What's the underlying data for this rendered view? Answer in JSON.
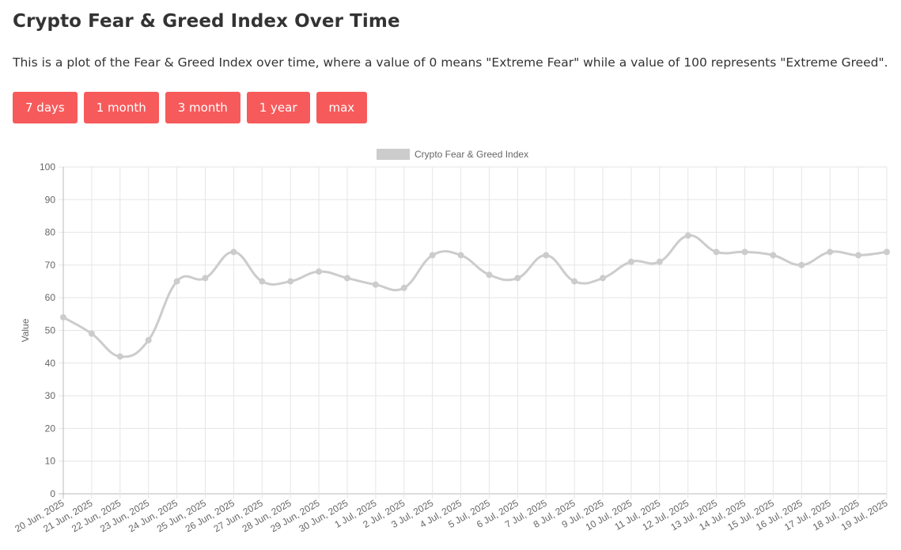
{
  "page": {
    "title": "Crypto Fear & Greed Index Over Time",
    "description": "This is a plot of the Fear & Greed Index over time, where a value of 0 means \"Extreme Fear\" while a value of 100 represents \"Extreme Greed\"."
  },
  "range_buttons": [
    "7 days",
    "1 month",
    "3 month",
    "1 year",
    "max"
  ],
  "colors": {
    "button_bg": "#f75a5a",
    "button_text": "#ffffff",
    "line": "#cccccc",
    "grid": "#e5e5e5",
    "text": "#333333"
  },
  "chart_data": {
    "type": "line",
    "title": "",
    "xlabel": "",
    "ylabel": "Value",
    "ylim": [
      0,
      100
    ],
    "yticks": [
      0,
      10,
      20,
      30,
      40,
      50,
      60,
      70,
      80,
      90,
      100
    ],
    "grid": true,
    "legend_position": "top-center",
    "categories": [
      "20 Jun, 2025",
      "21 Jun, 2025",
      "22 Jun, 2025",
      "23 Jun, 2025",
      "24 Jun, 2025",
      "25 Jun, 2025",
      "26 Jun, 2025",
      "27 Jun, 2025",
      "28 Jun, 2025",
      "29 Jun, 2025",
      "30 Jun, 2025",
      "1 Jul, 2025",
      "2 Jul, 2025",
      "3 Jul, 2025",
      "4 Jul, 2025",
      "5 Jul, 2025",
      "6 Jul, 2025",
      "7 Jul, 2025",
      "8 Jul, 2025",
      "9 Jul, 2025",
      "10 Jul, 2025",
      "11 Jul, 2025",
      "12 Jul, 2025",
      "13 Jul, 2025",
      "14 Jul, 2025",
      "15 Jul, 2025",
      "16 Jul, 2025",
      "17 Jul, 2025",
      "18 Jul, 2025",
      "19 Jul, 2025"
    ],
    "series": [
      {
        "name": "Crypto Fear & Greed Index",
        "color": "#cccccc",
        "values": [
          54,
          49,
          42,
          47,
          65,
          66,
          74,
          65,
          65,
          68,
          66,
          64,
          63,
          73,
          73,
          67,
          66,
          73,
          65,
          66,
          71,
          71,
          79,
          74,
          74,
          73,
          70,
          74,
          73,
          74
        ]
      }
    ]
  }
}
